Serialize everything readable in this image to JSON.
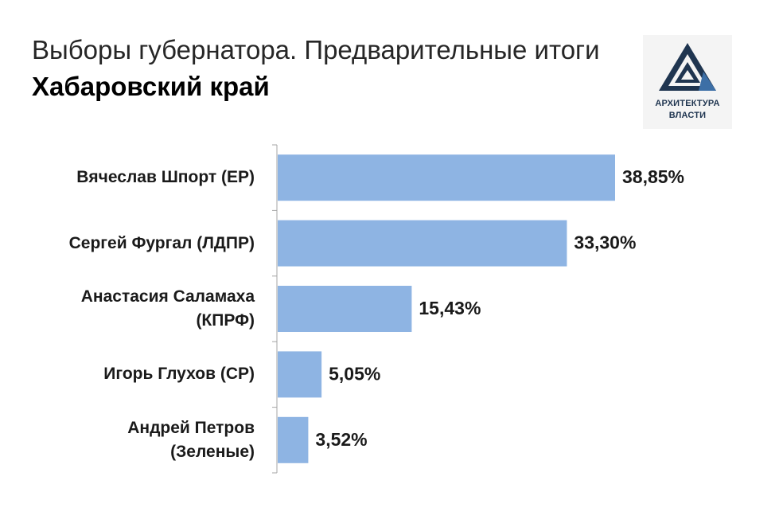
{
  "header": {
    "title": "Выборы губернатора. Предварительные итоги",
    "subtitle": "Хабаровский край"
  },
  "logo": {
    "line1": "АРХИТЕКТУРА",
    "line2": "ВЛАСТИ",
    "color": "#1f3550"
  },
  "chart_data": {
    "type": "bar",
    "orientation": "horizontal",
    "title": "Выборы губернатора. Предварительные итоги",
    "subtitle": "Хабаровский край",
    "categories": [
      "Вячеслав Шпорт (ЕР)",
      "Сергей Фургал (ЛДПР)",
      "Анастасия Саламаха (КПРФ)",
      "Игорь Глухов (СР)",
      "Андрей Петров (Зеленые)"
    ],
    "category_lines": [
      [
        "Вячеслав Шпорт (ЕР)"
      ],
      [
        "Сергей Фургал (ЛДПР)"
      ],
      [
        "Анастасия Саламаха",
        "(КПРФ)"
      ],
      [
        "Игорь Глухов (СР)"
      ],
      [
        "Андрей Петров",
        "(Зеленые)"
      ]
    ],
    "values": [
      38.85,
      33.3,
      15.43,
      5.05,
      3.52
    ],
    "data_labels": [
      "38,85%",
      "33,30%",
      "15,43%",
      "5,05%",
      "3,52%"
    ],
    "bar_color": "#8eb4e3",
    "xlim": [
      0,
      40
    ],
    "grid": false,
    "legend": "none"
  }
}
